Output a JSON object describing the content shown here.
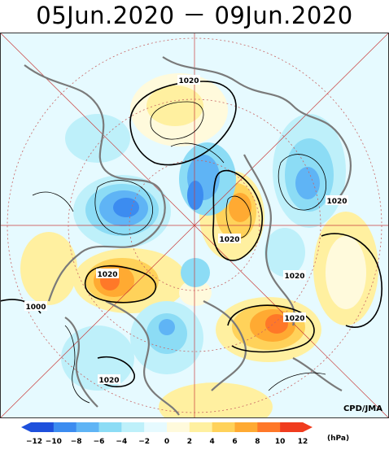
{
  "title": "05Jun.2020 － 09Jun.2020",
  "credit": "CPD/JMA",
  "units": "(hPa)",
  "contour_labels": [
    "1020",
    "1020",
    "1020",
    "1020",
    "1020",
    "1020",
    "1020",
    "1000"
  ],
  "colorbar": {
    "ticks": [
      "−12",
      "−10",
      "−8",
      "−6",
      "−4",
      "−2",
      "0",
      "2",
      "4",
      "6",
      "8",
      "10",
      "12"
    ],
    "colors": [
      "#1e50dc",
      "#3c8cf0",
      "#5fb4f5",
      "#8cdcf5",
      "#bef0fa",
      "#e6faff",
      "#fffadc",
      "#fff0a0",
      "#ffd25a",
      "#ffaa32",
      "#ff7828",
      "#f03c1e"
    ]
  },
  "map": {
    "projection": "polar stereographic, North Pole",
    "field": "sea level pressure anomaly",
    "colors": {
      "coast": "#7a7a7a",
      "grid": "#c83c3c",
      "latitude_circle": "#c86464",
      "contour": "#000000"
    }
  }
}
